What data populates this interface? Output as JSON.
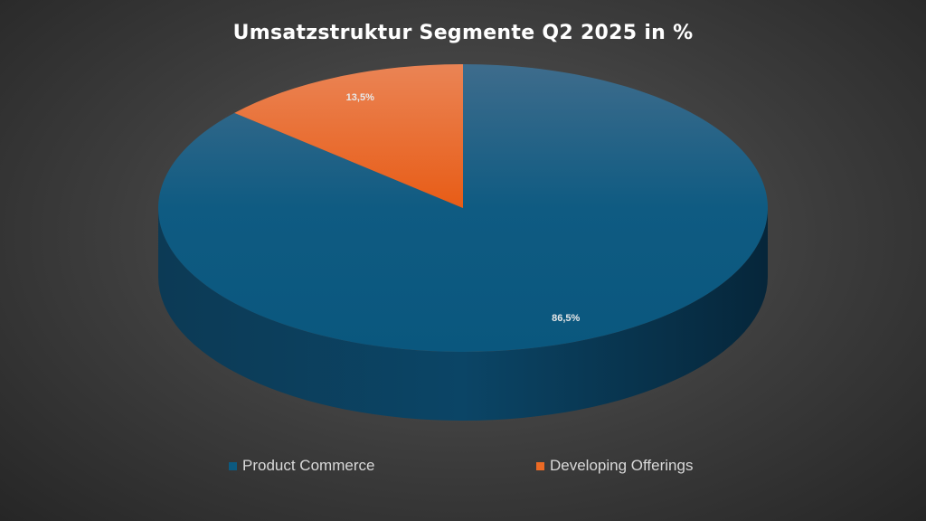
{
  "chart_data": {
    "type": "pie",
    "title": "Umsatzstruktur Segmente Q2 2025 in %",
    "slices": [
      {
        "label": "Product Commerce",
        "value": 86.5,
        "display": "86,5%",
        "color": "#0c5a80"
      },
      {
        "label": "Developing Offerings",
        "value": 13.5,
        "display": "13,5%",
        "color": "#ec6a24"
      }
    ],
    "legend_position": "bottom",
    "style": "3d"
  }
}
